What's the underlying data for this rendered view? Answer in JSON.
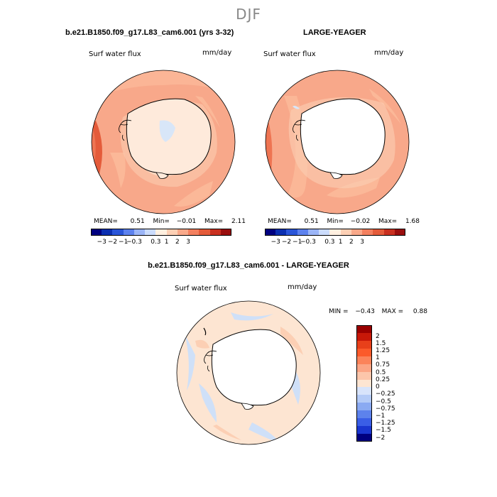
{
  "season": "DJF",
  "panels": [
    {
      "title": "b.e21.B1850.f09_g17.L83_cam6.001 (yrs 3-32)",
      "variable": "Surf water flux",
      "units": "mm/day",
      "stats": {
        "mean_label": "MEAN=",
        "mean": "0.51",
        "min_label": "Min=",
        "min": "−0.01",
        "max_label": "Max=",
        "max": "2.11"
      },
      "colorbar_labels": [
        "−3",
        "−2",
        "−1",
        "−0.3",
        "0.3",
        "1",
        "2",
        "3"
      ]
    },
    {
      "title": "LARGE-YEAGER",
      "variable": "Surf water flux",
      "units": "mm/day",
      "stats": {
        "mean_label": "MEAN=",
        "mean": "0.51",
        "min_label": "Min=",
        "min": "−0.02",
        "max_label": "Max=",
        "max": "1.68"
      },
      "colorbar_labels": [
        "−3",
        "−2",
        "−1",
        "−0.3",
        "0.3",
        "1",
        "2",
        "3"
      ]
    }
  ],
  "diff_panel": {
    "title": "b.e21.B1850.f09_g17.L83_cam6.001 - LARGE-YEAGER",
    "variable": "Surf water flux",
    "units": "mm/day",
    "stats": {
      "min_label": "MIN =",
      "min": "−0.43",
      "max_label": "MAX =",
      "max": "0.88"
    },
    "colorbar_labels": [
      "2",
      "1.5",
      "1.25",
      "1",
      "0.75",
      "0.5",
      "0.25",
      "0",
      "−0.25",
      "−0.5",
      "−0.75",
      "−1",
      "−1.25",
      "−1.5",
      "−2"
    ]
  },
  "colors": {
    "main_scale": [
      "#000080",
      "#0b2fb0",
      "#2a55d8",
      "#5d82ee",
      "#9bb5f7",
      "#cbdcfc",
      "#fff0e0",
      "#fdd0b5",
      "#f9a98a",
      "#f3805f",
      "#e45b3a",
      "#c93020",
      "#9a0e0e"
    ],
    "diff_scale": [
      "#9a0000",
      "#c81808",
      "#e8401a",
      "#fb5a2a",
      "#fb835a",
      "#fba585",
      "#fcc6ab",
      "#fde5d2",
      "#d8e4fb",
      "#b4cbf7",
      "#8aaaf2",
      "#5d82ec",
      "#3a5ee6",
      "#1a36d0",
      "#000080"
    ],
    "ocean_a": "#f8a88a",
    "ocean_b": "#fbb898",
    "ocean_rim": "#ee7452",
    "ice_a": "#feeadb",
    "ice_blue": "#d8e6f8",
    "diff_ocean": "#fde5d2",
    "diff_blue": "#cfe0f8",
    "land_outline": "#000000"
  }
}
